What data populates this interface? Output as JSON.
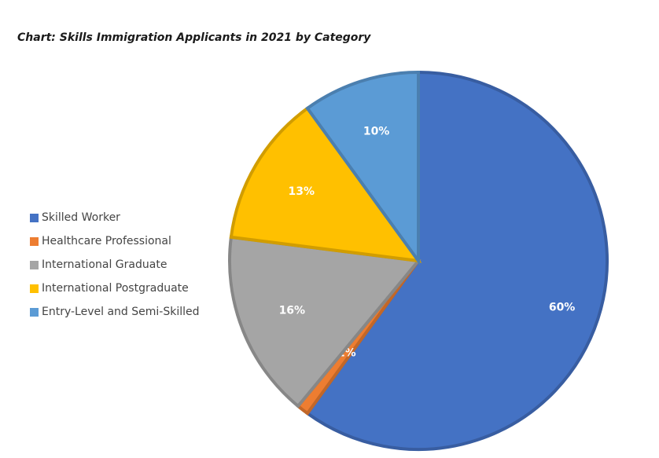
{
  "chart_data": {
    "type": "pie",
    "title": "Chart: Skills Immigration Applicants in 2021 by Category",
    "legend_position": "left",
    "slices": [
      {
        "label": "Skilled Worker",
        "value": 60,
        "display": "60%",
        "color": "#4472C4"
      },
      {
        "label": "Healthcare Professional",
        "value": 1,
        "display": "1%",
        "color": "#ED7D31"
      },
      {
        "label": "International Graduate",
        "value": 16,
        "display": "16%",
        "color": "#A5A5A5"
      },
      {
        "label": "International Postgraduate",
        "value": 13,
        "display": "13%",
        "color": "#FFC000"
      },
      {
        "label": "Entry-Level and Semi-Skilled",
        "value": 10,
        "display": "10%",
        "color": "#5B9BD5"
      }
    ]
  }
}
